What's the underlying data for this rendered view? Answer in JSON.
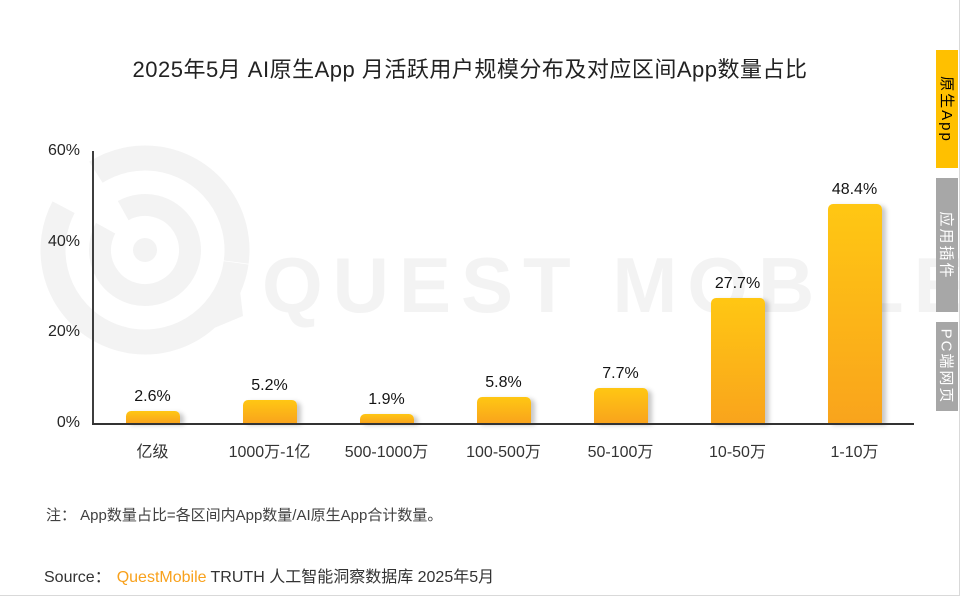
{
  "title": "2025年5月 AI原生App 月活跃用户规模分布及对应区间App数量占比",
  "side_tabs": [
    {
      "label": "原生App",
      "active": true
    },
    {
      "label": "应用插件",
      "active": false
    },
    {
      "label": "PC端网页",
      "active": false
    }
  ],
  "chart_data": {
    "type": "bar",
    "title": "2025年5月 AI原生App 月活跃用户规模分布及对应区间App数量占比",
    "categories": [
      "亿级",
      "1000万-1亿",
      "500-1000万",
      "100-500万",
      "50-100万",
      "10-50万",
      "1-10万"
    ],
    "values": [
      2.6,
      5.2,
      1.9,
      5.8,
      7.7,
      27.7,
      48.4
    ],
    "value_labels": [
      "2.6%",
      "5.2%",
      "1.9%",
      "5.8%",
      "7.7%",
      "27.7%",
      "48.4%"
    ],
    "xlabel": "",
    "ylabel": "",
    "ylim": [
      0,
      60
    ],
    "yticks": [
      "0%",
      "20%",
      "40%",
      "60%"
    ],
    "grid": false,
    "legend": "none",
    "bar_color_top": "#FFC713",
    "bar_color_bottom": "#F9A41C"
  },
  "note": "注： App数量占比=各区间内App数量/AI原生App合计数量。",
  "source": {
    "prefix": "Source：",
    "brand": "QuestMobile",
    "suffix": "TRUTH 人工智能洞察数据库 2025年5月"
  },
  "watermark": {
    "text": "QUEST MOBILE"
  },
  "colors": {
    "tab_active_bg": "#FFC000",
    "tab_inactive_bg": "#A7A7A7",
    "brand_orange": "#F8A11C",
    "axis": "#3D3D3D",
    "watermark_gray": "#F3F3F3"
  }
}
